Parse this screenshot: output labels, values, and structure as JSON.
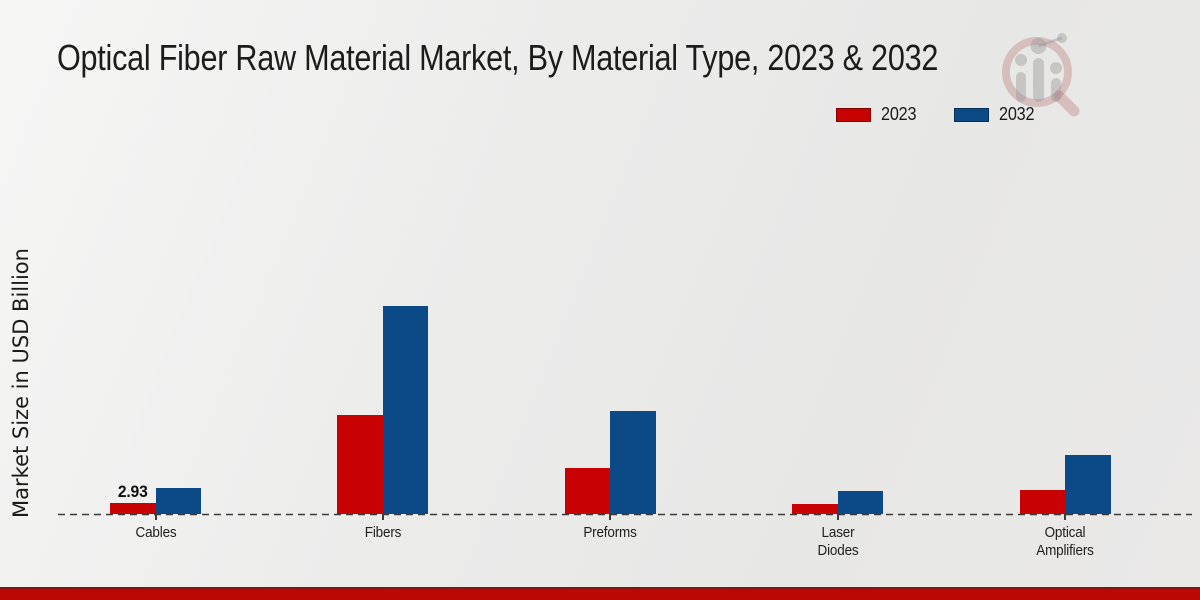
{
  "header": {
    "title": "Optical Fiber Raw Material Market, By Material Type, 2023 & 2032"
  },
  "legend": {
    "items": [
      {
        "label": "2023",
        "color": "#c80202"
      },
      {
        "label": "2032",
        "color": "#0b4a87"
      }
    ]
  },
  "y_axis": {
    "label": "Market Size in USD Billion"
  },
  "chart_data": {
    "type": "bar",
    "title": "Optical Fiber Raw Material Market, By Material Type, 2023 & 2032",
    "categories": [
      "Cables",
      "Fibers",
      "Preforms",
      "Laser Diodes",
      "Optical Amplifiers"
    ],
    "series": [
      {
        "name": "2023",
        "color": "#c80202",
        "values": [
          2.93,
          27.5,
          12.8,
          2.8,
          6.7
        ]
      },
      {
        "name": "2032",
        "color": "#0b4a87",
        "values": [
          7.2,
          57.8,
          28.6,
          6.4,
          16.4
        ]
      }
    ],
    "data_labels": [
      {
        "series": "2023",
        "category": "Cables",
        "text": "2.93"
      }
    ],
    "xlabel": "",
    "ylabel": "Market Size in USD Billion",
    "ylim": [
      0,
      60
    ],
    "grid": false,
    "baseline": "dashed",
    "legend_position": "top-right"
  },
  "branding": {
    "watermark": "magnifier-bar-chart-logo",
    "footer_band_color": "#bb0805"
  }
}
